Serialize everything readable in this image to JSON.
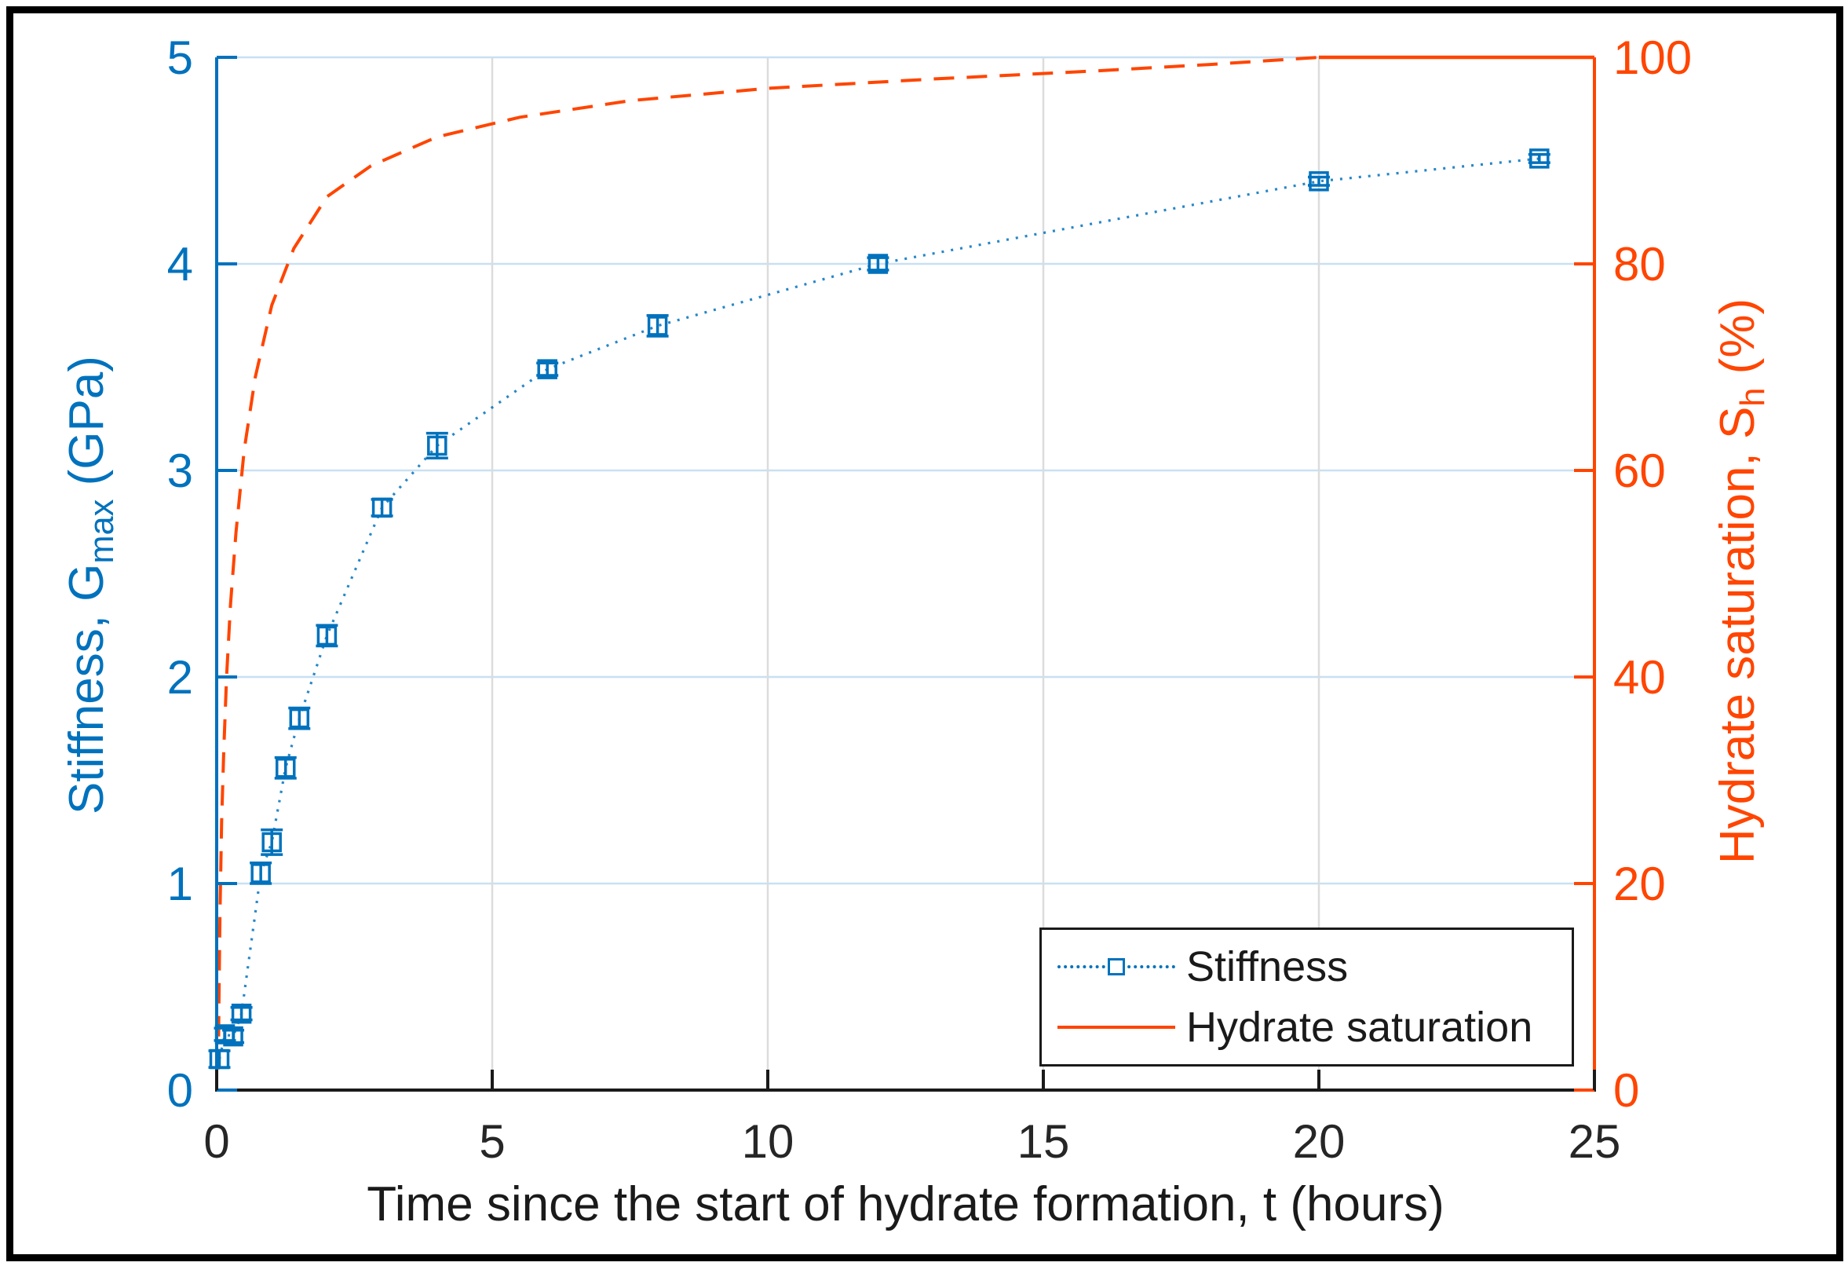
{
  "figure": {
    "background": "#FFFFFF",
    "border_color": "#000000"
  },
  "chart_data": {
    "type": "line",
    "title": "",
    "xlabel": "Time since the start of hydrate formation, t (hours)",
    "ylabel_left": {
      "prefix": "Stiffness, G",
      "sub": "max",
      "suffix": " (GPa)",
      "color": "#0072BD"
    },
    "ylabel_right": {
      "prefix": "Hydrate saturation, S",
      "sub": "h",
      "suffix": " (%)",
      "color": "#FF4500"
    },
    "xlim": [
      0,
      25
    ],
    "ylim_left": [
      0,
      5
    ],
    "ylim_right": [
      0,
      100
    ],
    "xticks": [
      0,
      5,
      10,
      15,
      20,
      25
    ],
    "yticks_left": [
      0,
      1,
      2,
      3,
      4,
      5
    ],
    "yticks_right": [
      0,
      20,
      40,
      60,
      80,
      100
    ],
    "grid": {
      "horizontal_color": "#C8E0F3",
      "vertical_color": "#DCDCDC",
      "on": true
    },
    "axes_colors": {
      "left": "#0072BD",
      "right": "#FF4500",
      "bottom": "#1A1A1A",
      "tick_label_bottom": "#262626"
    },
    "series": [
      {
        "name": "Stiffness",
        "axis": "left",
        "color": "#0072BD",
        "line_style": "dotted",
        "marker": "open-square",
        "points_format": [
          "t_hours",
          "G_GPa",
          "err_GPa"
        ],
        "points": [
          [
            0.05,
            0.15,
            0.04
          ],
          [
            0.15,
            0.27,
            0.03
          ],
          [
            0.3,
            0.26,
            0.03
          ],
          [
            0.45,
            0.37,
            0.03
          ],
          [
            0.8,
            1.05,
            0.05
          ],
          [
            1.0,
            1.2,
            0.06
          ],
          [
            1.25,
            1.56,
            0.05
          ],
          [
            1.5,
            1.8,
            0.05
          ],
          [
            2.0,
            2.2,
            0.05
          ],
          [
            3.0,
            2.82,
            0.04
          ],
          [
            4.0,
            3.12,
            0.06
          ],
          [
            6.0,
            3.49,
            0.03
          ],
          [
            8.0,
            3.7,
            0.05
          ],
          [
            12.0,
            4.0,
            0.03
          ],
          [
            20.0,
            4.4,
            0.02
          ],
          [
            24.0,
            4.51,
            0.02
          ]
        ]
      },
      {
        "name": "Hydrate saturation",
        "axis": "right",
        "color": "#FF4500",
        "line_style": "dashed",
        "marker": "none",
        "points_format": [
          "t_hours",
          "Sh_percent"
        ],
        "points": [
          [
            0.03,
            2
          ],
          [
            0.04,
            8
          ],
          [
            0.06,
            17
          ],
          [
            0.09,
            26
          ],
          [
            0.13,
            33
          ],
          [
            0.18,
            40
          ],
          [
            0.25,
            47
          ],
          [
            0.35,
            54
          ],
          [
            0.5,
            62
          ],
          [
            0.7,
            69
          ],
          [
            1.0,
            76
          ],
          [
            1.4,
            81.5
          ],
          [
            2.0,
            86.5
          ],
          [
            2.8,
            89.5
          ],
          [
            4.0,
            92.3
          ],
          [
            5.5,
            94.2
          ],
          [
            7.5,
            95.8
          ],
          [
            10,
            97.0
          ],
          [
            13,
            97.9
          ],
          [
            16,
            98.7
          ],
          [
            18,
            99.3
          ],
          [
            20,
            100
          ],
          [
            25,
            100
          ]
        ]
      }
    ],
    "legend": {
      "position": "southeast",
      "items": [
        {
          "label": "Stiffness"
        },
        {
          "label": "Hydrate saturation"
        }
      ]
    }
  }
}
